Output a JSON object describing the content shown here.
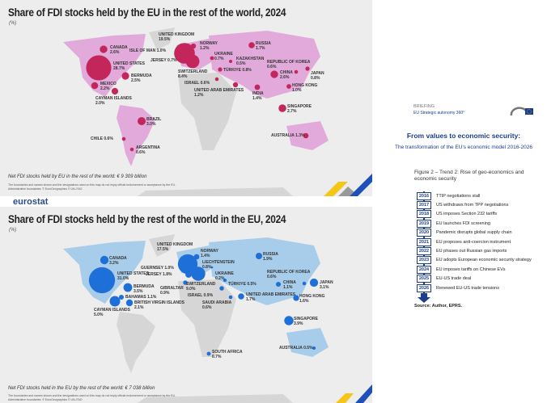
{
  "top_map": {
    "title": "Share of FDI stocks held by the EU in the rest of the world, 2024",
    "unit": "(%)",
    "note": "Net FDI stocks held by EU in the rest of the world: € 9 309 billion",
    "disclaimer": "The boundaries and names shown and the designations used on this map do not imply official endorsement or acceptance by the EU.",
    "admin": "Administrative boundaries: © EuroGeographics © UN–FAO",
    "land_color": "#e2aadb",
    "dot_color": "#c2265a",
    "markers": [
      {
        "name": "CANADA",
        "value": "2.6%"
      },
      {
        "name": "UNITED STATES",
        "value": "28.7%"
      },
      {
        "name": "BERMUDA",
        "value": "2.5%"
      },
      {
        "name": "MEXICO",
        "value": "2.2%"
      },
      {
        "name": "CAYMAN ISLANDS",
        "value": "2.0%"
      },
      {
        "name": "BRAZIL",
        "value": "3.0%"
      },
      {
        "name": "CHILE",
        "value": "0.6%"
      },
      {
        "name": "ARGENTINA",
        "value": "0.6%"
      },
      {
        "name": "UNITED KINGDOM",
        "value": "19.5%"
      },
      {
        "name": "ISLE OF MAN",
        "value": "1.0%"
      },
      {
        "name": "JERSEY",
        "value": "0.7%"
      },
      {
        "name": "SWITZERLAND",
        "value": "8.4%"
      },
      {
        "name": "NORWAY",
        "value": "1.2%"
      },
      {
        "name": "UKRAINE",
        "value": "0.7%"
      },
      {
        "name": "KAZAKHSTAN",
        "value": "0.5%"
      },
      {
        "name": "RUSSIA",
        "value": "1.7%"
      },
      {
        "name": "TÜRKIYE",
        "value": "0.8%"
      },
      {
        "name": "ISRAEL",
        "value": "0.6%"
      },
      {
        "name": "UNITED ARAB EMIRATES",
        "value": "1.2%"
      },
      {
        "name": "INDIA",
        "value": "1.4%"
      },
      {
        "name": "CHINA",
        "value": "2.6%"
      },
      {
        "name": "REPUBLIC OF KOREA",
        "value": "0.6%"
      },
      {
        "name": "JAPAN",
        "value": "0.8%"
      },
      {
        "name": "HONG KONG",
        "value": "1.0%"
      },
      {
        "name": "SINGAPORE",
        "value": "2.7%"
      },
      {
        "name": "AUSTRALIA",
        "value": "1.3%"
      }
    ]
  },
  "bottom_map": {
    "title": "Share of FDI stocks held by the rest of the world in the EU, 2024",
    "unit": "(%)",
    "note": "Net FDI stocks held in the EU by the rest of the world: € 7 038 billion",
    "disclaimer": "The boundaries and names shown and the designations used on this map do not imply official endorsement or acceptance by the EU.",
    "admin": "Administrative boundaries: © EuroGeographics © UN–FAO",
    "land_color": "#a8cdea",
    "dot_color": "#1f6fd8",
    "markers": [
      {
        "name": "CANADA",
        "value": "3.2%"
      },
      {
        "name": "UNITED STATES",
        "value": "31.0%"
      },
      {
        "name": "BERMUDA",
        "value": "3.5%"
      },
      {
        "name": "BAHAMAS",
        "value": "1.1%"
      },
      {
        "name": "BRITISH VIRGIN ISLANDS",
        "value": "2.1%"
      },
      {
        "name": "CAYMAN ISLANDS",
        "value": "5.0%"
      },
      {
        "name": "UNITED KINGDOM",
        "value": "17.5%"
      },
      {
        "name": "NORWAY",
        "value": "1.4%"
      },
      {
        "name": "LIECHTENSTEIN",
        "value": "0.8%"
      },
      {
        "name": "GUERNSEY",
        "value": "1.0%"
      },
      {
        "name": "JERSEY",
        "value": "1.8%"
      },
      {
        "name": "SWITZERLAND",
        "value": "9.0%"
      },
      {
        "name": "GIBRALTAR",
        "value": "0.9%"
      },
      {
        "name": "UKRAINE",
        "value": "0.2%"
      },
      {
        "name": "TÜRKIYE",
        "value": "0.5%"
      },
      {
        "name": "ISRAEL",
        "value": "0.9%"
      },
      {
        "name": "SAUDI ARABIA",
        "value": "0.6%"
      },
      {
        "name": "UNITED ARAB EMIRATES",
        "value": "1.7%"
      },
      {
        "name": "RUSSIA",
        "value": "1.9%"
      },
      {
        "name": "CHINA",
        "value": "1.1%"
      },
      {
        "name": "REPUBLIC OF KOREA",
        "value": "0.6%"
      },
      {
        "name": "JAPAN",
        "value": "3.1%"
      },
      {
        "name": "HONG KONG",
        "value": "1.6%"
      },
      {
        "name": "SINGAPORE",
        "value": "3.9%"
      },
      {
        "name": "AUSTRALIA",
        "value": "0.5%"
      },
      {
        "name": "SOUTH AFRICA",
        "value": "0.7%"
      }
    ]
  },
  "logo": "eurostat",
  "briefing": {
    "label": "BRIEFING",
    "series": "EU Strategic autonomy 360°",
    "logo_text": "European Parliament",
    "title": "From values to economic security:",
    "subtitle": "The transformation of the EU's economic model 2016-2026",
    "figure": "Figure 2 – Trend 2: Rise of geo-economics and economic security",
    "timeline": [
      {
        "year": "2016",
        "event": "TTIP negotiations stall"
      },
      {
        "year": "2017",
        "event": "US withdraws from TPP negotiations"
      },
      {
        "year": "2018",
        "event": "US imposes Section 232 tariffs"
      },
      {
        "year": "2019",
        "event": "EU launches FDI screening"
      },
      {
        "year": "2020",
        "event": "Pandemic disrupts global supply chain"
      },
      {
        "year": "2021",
        "event": "EU proposes anti-coercion instrument"
      },
      {
        "year": "2022",
        "event": "EU phases out Russian gas imports"
      },
      {
        "year": "2023",
        "event": "EU adopts European economic security strategy"
      },
      {
        "year": "2024",
        "event": "EU imposes tariffs on Chinese EVs"
      },
      {
        "year": "2025",
        "event": "EU-US trade deal"
      },
      {
        "year": "2026",
        "event": "Renewed EU-US trade tensions"
      }
    ],
    "source": "Source: Author, EPRS."
  }
}
